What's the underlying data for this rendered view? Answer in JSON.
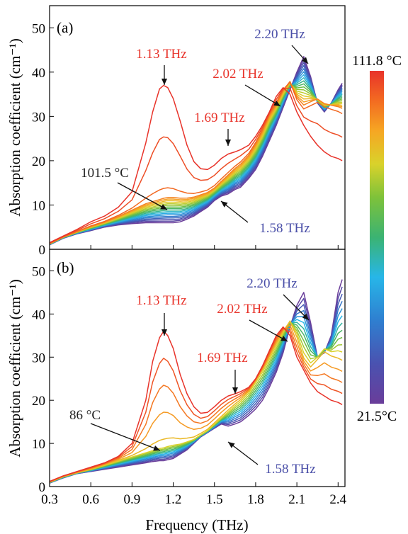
{
  "figure": {
    "xlabel": "Frequency (THz)",
    "colorbar": {
      "top_label": "111.8 °C",
      "bottom_label": "21.5°C"
    }
  },
  "chart_data": [
    {
      "type": "line",
      "panel_label": "(a)",
      "xlabel": "Frequency (THz)",
      "ylabel": "Absorption coefficient (cm⁻¹)",
      "xlim": [
        0.3,
        2.45
      ],
      "ylim": [
        0,
        55
      ],
      "xticks": [
        0.3,
        0.6,
        0.9,
        1.2,
        1.5,
        1.8,
        2.1,
        2.4
      ],
      "xtick_labels": [
        "0.3",
        "0.6",
        "0.9",
        "1.2",
        "1.5",
        "1.8",
        "2.1",
        "2.4"
      ],
      "yticks": [
        0,
        10,
        20,
        30,
        40,
        50
      ],
      "ytick_labels": [
        "0",
        "10",
        "20",
        "30",
        "40",
        "50"
      ],
      "grid": false,
      "temperature_range_c": [
        21.5,
        111.8
      ],
      "series_count": 20,
      "x": [
        0.3,
        0.4,
        0.5,
        0.6,
        0.7,
        0.8,
        0.9,
        1.0,
        1.05,
        1.1,
        1.13,
        1.16,
        1.2,
        1.25,
        1.3,
        1.35,
        1.4,
        1.45,
        1.5,
        1.55,
        1.6,
        1.65,
        1.69,
        1.75,
        1.8,
        1.85,
        1.9,
        1.95,
        2.0,
        2.05,
        2.1,
        2.15,
        2.2,
        2.25,
        2.3,
        2.35,
        2.4,
        2.43
      ],
      "representative_series": [
        {
          "temperature_c": 111.8,
          "values": [
            1.5,
            3.0,
            4.5,
            6.2,
            7.5,
            9.5,
            13.0,
            24.0,
            31.0,
            36.2,
            37.0,
            36.5,
            34.0,
            29.0,
            23.5,
            19.8,
            18.2,
            18.0,
            19.0,
            20.5,
            21.5,
            22.0,
            22.5,
            23.5,
            25.5,
            28.0,
            31.0,
            34.5,
            36.5,
            35.0,
            31.0,
            28.0,
            25.5,
            23.5,
            22.0,
            21.0,
            20.5,
            20.0
          ]
        },
        {
          "temperature_c": 101.5,
          "values": [
            1.3,
            2.8,
            4.0,
            5.2,
            6.2,
            7.5,
            9.0,
            10.5,
            11.0,
            11.5,
            11.8,
            12.0,
            12.0,
            11.8,
            11.8,
            12.0,
            12.5,
            13.0,
            14.0,
            15.5,
            17.0,
            18.5,
            19.5,
            21.5,
            24.0,
            27.0,
            30.5,
            33.0,
            36.0,
            38.0,
            34.0,
            32.0,
            33.0,
            34.0,
            33.0,
            32.5,
            32.0,
            31.5
          ]
        },
        {
          "temperature_c": 21.5,
          "values": [
            1.0,
            2.5,
            3.5,
            4.2,
            5.0,
            5.5,
            5.8,
            6.0,
            6.0,
            6.0,
            6.0,
            6.0,
            6.0,
            6.2,
            6.8,
            7.5,
            8.5,
            9.5,
            11.0,
            12.0,
            12.5,
            13.5,
            14.0,
            16.0,
            18.0,
            21.0,
            24.5,
            28.0,
            32.0,
            36.0,
            40.0,
            43.5,
            39.0,
            33.0,
            31.0,
            33.0,
            36.0,
            37.5
          ]
        }
      ],
      "annotations": [
        {
          "text": "1.13 THz",
          "x": 1.13,
          "color": "#e8332a"
        },
        {
          "text": "1.69 THz",
          "x": 1.69,
          "color": "#e8332a"
        },
        {
          "text": "2.02 THz",
          "x": 2.02,
          "color": "#e8332a"
        },
        {
          "text": "2.20 THz",
          "x": 2.2,
          "color": "#4a4fa8"
        },
        {
          "text": "1.58 THz",
          "x": 1.58,
          "color": "#4a4fa8"
        },
        {
          "text": "101.5 °C",
          "x": 1.13,
          "color": "#222222"
        }
      ]
    },
    {
      "type": "line",
      "panel_label": "(b)",
      "xlabel": "Frequency (THz)",
      "ylabel": "Absorption coefficient (cm⁻¹)",
      "xlim": [
        0.3,
        2.45
      ],
      "ylim": [
        0,
        55
      ],
      "xticks": [
        0.3,
        0.6,
        0.9,
        1.2,
        1.5,
        1.8,
        2.1,
        2.4
      ],
      "xtick_labels": [
        "0.3",
        "0.6",
        "0.9",
        "1.2",
        "1.5",
        "1.8",
        "2.1",
        "2.4"
      ],
      "yticks": [
        0,
        10,
        20,
        30,
        40,
        50
      ],
      "ytick_labels": [
        "0",
        "10",
        "20",
        "30",
        "40",
        "50"
      ],
      "grid": false,
      "temperature_range_c": [
        21.5,
        111.8
      ],
      "series_count": 16,
      "x": [
        0.3,
        0.4,
        0.5,
        0.6,
        0.7,
        0.8,
        0.9,
        1.0,
        1.05,
        1.1,
        1.13,
        1.16,
        1.2,
        1.25,
        1.3,
        1.35,
        1.4,
        1.45,
        1.5,
        1.55,
        1.6,
        1.65,
        1.69,
        1.75,
        1.8,
        1.85,
        1.9,
        1.95,
        2.0,
        2.05,
        2.1,
        2.15,
        2.2,
        2.25,
        2.3,
        2.35,
        2.4,
        2.43
      ],
      "representative_series": [
        {
          "temperature_c": 111.8,
          "values": [
            1.2,
            2.5,
            3.5,
            4.5,
            5.5,
            7.0,
            10.0,
            20.0,
            29.0,
            34.5,
            36.0,
            35.0,
            32.0,
            26.0,
            21.5,
            18.5,
            17.0,
            17.2,
            18.5,
            20.0,
            21.0,
            21.5,
            22.0,
            23.0,
            25.0,
            28.0,
            31.5,
            35.0,
            37.0,
            35.0,
            30.0,
            27.0,
            24.0,
            22.0,
            21.0,
            20.0,
            19.5,
            19.0
          ]
        },
        {
          "temperature_c": 86,
          "values": [
            1.0,
            2.3,
            3.2,
            4.0,
            5.0,
            6.0,
            7.0,
            8.0,
            8.5,
            9.0,
            9.2,
            9.5,
            9.8,
            10.0,
            10.5,
            11.0,
            12.0,
            13.0,
            14.5,
            16.0,
            17.5,
            19.0,
            20.0,
            22.0,
            24.5,
            27.0,
            30.0,
            33.0,
            36.0,
            38.5,
            35.0,
            30.0,
            28.0,
            30.0,
            32.0,
            31.0,
            30.5,
            30.0
          ]
        },
        {
          "temperature_c": 21.5,
          "values": [
            0.8,
            2.0,
            3.0,
            3.5,
            4.0,
            4.5,
            5.0,
            5.5,
            5.8,
            6.0,
            6.0,
            6.2,
            6.5,
            7.5,
            8.5,
            10.0,
            11.5,
            12.5,
            13.5,
            14.5,
            14.0,
            14.5,
            15.0,
            16.5,
            18.0,
            20.0,
            23.0,
            26.5,
            31.0,
            37.0,
            42.0,
            45.0,
            38.0,
            30.0,
            31.0,
            35.0,
            45.0,
            48.0
          ]
        }
      ],
      "annotations": [
        {
          "text": "1.13 THz",
          "x": 1.13,
          "color": "#e8332a"
        },
        {
          "text": "1.69 THz",
          "x": 1.69,
          "color": "#e8332a"
        },
        {
          "text": "2.02 THz",
          "x": 2.02,
          "color": "#e8332a"
        },
        {
          "text": "2.20 THz",
          "x": 2.2,
          "color": "#4a4fa8"
        },
        {
          "text": "1.58 THz",
          "x": 1.58,
          "color": "#4a4fa8"
        },
        {
          "text": "86 °C",
          "x": 1.13,
          "color": "#222222"
        }
      ]
    }
  ],
  "colors": {
    "hot": "#e8332a",
    "cold": "#6a4aa8",
    "annotation_blue": "#4a4fa8",
    "annotation_red": "#e8332a",
    "colormap": [
      "#6a3d9a",
      "#4a52b0",
      "#2f7fd0",
      "#27b6e8",
      "#3bb372",
      "#7ec23a",
      "#d9d22b",
      "#f6a623",
      "#f36b21",
      "#e8332a"
    ]
  }
}
